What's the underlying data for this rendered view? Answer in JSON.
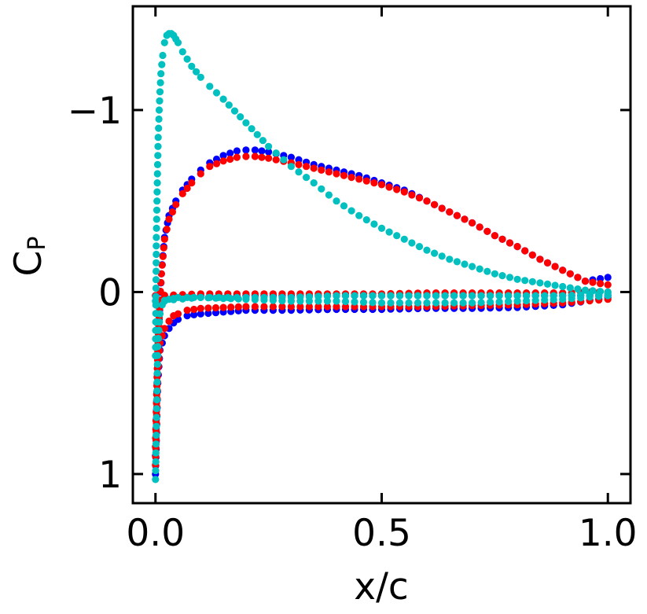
{
  "chart_data": {
    "type": "scatter",
    "title": "",
    "xlabel": "x/c",
    "ylabel_main": "C",
    "ylabel_sub": "P",
    "xlim": [
      -0.05,
      1.05
    ],
    "ylim": [
      -1.57,
      1.16
    ],
    "y_inverted": true,
    "grid": false,
    "legend": "none",
    "xticks": [
      {
        "value": 0.0,
        "label": "0.0"
      },
      {
        "value": 0.5,
        "label": "0.5"
      },
      {
        "value": 1.0,
        "label": "1.0"
      }
    ],
    "yticks": [
      {
        "value": -1,
        "label": "−1"
      },
      {
        "value": 0,
        "label": "0"
      },
      {
        "value": 1,
        "label": "1"
      }
    ],
    "series": [
      {
        "name": "blue",
        "color": "#0000ff",
        "upper": {
          "x": [
            0.0,
            0.004,
            0.008,
            0.013,
            0.02,
            0.03,
            0.045,
            0.06,
            0.08,
            0.1,
            0.12,
            0.15,
            0.18,
            0.2,
            0.22,
            0.25,
            0.3,
            0.35,
            0.4,
            0.45,
            0.5,
            0.55,
            0.6,
            0.65,
            0.7,
            0.75,
            0.8,
            0.85,
            0.9,
            0.95,
            1.0
          ],
          "y": [
            0.9,
            0.45,
            0.15,
            -0.1,
            -0.3,
            -0.42,
            -0.5,
            -0.56,
            -0.62,
            -0.67,
            -0.71,
            -0.75,
            -0.775,
            -0.78,
            -0.78,
            -0.77,
            -0.74,
            -0.7,
            -0.67,
            -0.64,
            -0.6,
            -0.56,
            -0.5,
            -0.44,
            -0.38,
            -0.31,
            -0.25,
            -0.18,
            -0.12,
            -0.06,
            -0.08
          ]
        },
        "lower": {
          "x": [
            0.0,
            0.005,
            0.01,
            0.02,
            0.03,
            0.04,
            0.05,
            0.07,
            0.1,
            0.15,
            0.2,
            0.3,
            0.4,
            0.5,
            0.6,
            0.7,
            0.8,
            0.9,
            1.0
          ],
          "y": [
            1.0,
            0.5,
            0.32,
            0.24,
            0.2,
            0.17,
            0.15,
            0.13,
            0.12,
            0.11,
            0.1,
            0.1,
            0.095,
            0.095,
            0.09,
            0.09,
            0.085,
            0.07,
            0.03
          ]
        },
        "flat": {
          "x": [
            0.0,
            0.1,
            0.2,
            0.3,
            0.4,
            0.5,
            0.6,
            0.7,
            0.8,
            0.9,
            1.0
          ],
          "y": [
            0.02,
            0.02,
            0.02,
            0.02,
            0.02,
            0.02,
            0.02,
            0.02,
            0.02,
            0.02,
            0.02
          ]
        }
      },
      {
        "name": "red",
        "color": "#ff0000",
        "upper": {
          "x": [
            0.0,
            0.004,
            0.008,
            0.013,
            0.02,
            0.03,
            0.045,
            0.06,
            0.08,
            0.1,
            0.12,
            0.15,
            0.18,
            0.2,
            0.22,
            0.25,
            0.3,
            0.35,
            0.4,
            0.45,
            0.5,
            0.55,
            0.6,
            0.65,
            0.7,
            0.75,
            0.8,
            0.85,
            0.9,
            0.95,
            1.0
          ],
          "y": [
            0.85,
            0.42,
            0.14,
            -0.1,
            -0.29,
            -0.4,
            -0.48,
            -0.54,
            -0.6,
            -0.65,
            -0.69,
            -0.72,
            -0.74,
            -0.745,
            -0.745,
            -0.735,
            -0.71,
            -0.68,
            -0.65,
            -0.62,
            -0.59,
            -0.55,
            -0.5,
            -0.44,
            -0.38,
            -0.31,
            -0.25,
            -0.18,
            -0.12,
            -0.06,
            -0.04
          ]
        },
        "lower": {
          "x": [
            0.0,
            0.005,
            0.01,
            0.02,
            0.03,
            0.04,
            0.05,
            0.07,
            0.1,
            0.15,
            0.2,
            0.3,
            0.4,
            0.5,
            0.6,
            0.7,
            0.8,
            0.9,
            1.0
          ],
          "y": [
            0.95,
            0.45,
            0.28,
            0.2,
            0.16,
            0.13,
            0.12,
            0.1,
            0.09,
            0.085,
            0.08,
            0.08,
            0.08,
            0.08,
            0.08,
            0.075,
            0.07,
            0.06,
            0.04
          ]
        },
        "flat": {
          "x": [
            0.0,
            0.1,
            0.2,
            0.3,
            0.4,
            0.5,
            0.6,
            0.7,
            0.8,
            0.9,
            1.0
          ],
          "y": [
            0.02,
            0.01,
            0.01,
            0.01,
            0.01,
            0.01,
            0.005,
            0.005,
            0.005,
            0.005,
            0.0
          ]
        }
      },
      {
        "name": "cyan",
        "color": "#00c0c0",
        "upper": {
          "x": [
            0.0,
            0.002,
            0.004,
            0.006,
            0.009,
            0.012,
            0.016,
            0.02,
            0.025,
            0.03,
            0.035,
            0.04,
            0.045,
            0.05,
            0.06,
            0.07,
            0.08,
            0.1,
            0.12,
            0.15,
            0.2,
            0.25,
            0.3,
            0.35,
            0.4,
            0.45,
            0.5,
            0.55,
            0.6,
            0.65,
            0.7,
            0.75,
            0.8,
            0.85,
            0.9,
            0.95,
            1.0
          ],
          "y": [
            0.35,
            -0.3,
            -0.6,
            -0.85,
            -1.05,
            -1.2,
            -1.3,
            -1.37,
            -1.41,
            -1.42,
            -1.42,
            -1.41,
            -1.39,
            -1.37,
            -1.32,
            -1.28,
            -1.24,
            -1.18,
            -1.13,
            -1.06,
            -0.93,
            -0.8,
            -0.69,
            -0.6,
            -0.5,
            -0.42,
            -0.35,
            -0.29,
            -0.23,
            -0.18,
            -0.14,
            -0.1,
            -0.07,
            -0.05,
            -0.03,
            -0.01,
            0.0
          ]
        },
        "lower": {
          "x": [
            0.0,
            0.005,
            0.01,
            0.015,
            0.02,
            0.03,
            0.04,
            0.05,
            0.07,
            0.1,
            0.15,
            0.2,
            0.3,
            0.4,
            0.5,
            0.6,
            0.7,
            0.8,
            0.9,
            1.0
          ],
          "y": [
            1.03,
            0.3,
            0.12,
            0.07,
            0.05,
            0.04,
            0.035,
            0.03,
            0.03,
            0.03,
            0.035,
            0.04,
            0.05,
            0.05,
            0.06,
            0.06,
            0.06,
            0.05,
            0.04,
            0.02
          ]
        },
        "flat": {
          "x": [
            0.0,
            0.1,
            0.2,
            0.3,
            0.4,
            0.5,
            0.6,
            0.7,
            0.8,
            0.9,
            1.0
          ],
          "y": [
            0.05,
            0.03,
            0.03,
            0.03,
            0.02,
            0.02,
            0.02,
            0.02,
            0.02,
            0.02,
            0.01
          ]
        }
      }
    ]
  }
}
